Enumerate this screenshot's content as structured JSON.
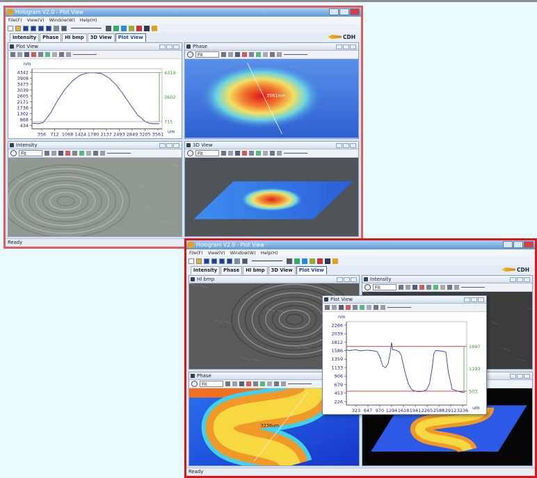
{
  "windows": [
    {
      "title": "Hologram V2.0 - Plot View",
      "menu": [
        "File(F)",
        "View(V)",
        "Window(W)",
        "Help(H)"
      ],
      "tabs": [
        "Intensity",
        "Phase",
        "HI bmp",
        "3D View",
        "Plot View"
      ],
      "active_tab": 4,
      "logo": "CDH",
      "status": "Ready",
      "panels": [
        {
          "title": "Plot View"
        },
        {
          "title": "Phase",
          "zoom": "Fit",
          "annotation": "3561nm"
        },
        {
          "title": "Intensity",
          "zoom": "Fit"
        },
        {
          "title": "3D View",
          "zoom": "Fit"
        }
      ],
      "plot": {
        "y_unit": "nm",
        "x_unit": "um",
        "yticks": [
          434,
          868,
          1302,
          1736,
          2171,
          2605,
          3039,
          3473,
          3908,
          4342
        ],
        "xticks": [
          356,
          712,
          1068,
          1424,
          1780,
          2137,
          2493,
          2849,
          3205,
          3561
        ],
        "markers": [
          4319,
          3602,
          715
        ],
        "profile": {
          "x": [
            100,
            250,
            400,
            600,
            800,
            1000,
            1200,
            1400,
            1600,
            1780,
            2000,
            2200,
            2400,
            2600,
            2800,
            3000,
            3200,
            3300,
            3400,
            3600
          ],
          "y": [
            600,
            560,
            650,
            1350,
            2300,
            3100,
            3700,
            4100,
            4290,
            4319,
            4250,
            3950,
            3450,
            2750,
            1950,
            1200,
            740,
            620,
            560,
            560
          ]
        }
      }
    },
    {
      "title": "Hologram V2.0 - Plot View",
      "menu": [
        "File(F)",
        "View(V)",
        "Window(W)",
        "Help(H)"
      ],
      "tabs": [
        "Intensity",
        "Phase",
        "HI bmp",
        "3D View",
        "Plot View"
      ],
      "active_tab": 4,
      "logo": "CDH",
      "status": "Ready",
      "panels": [
        {
          "title": "HI bmp"
        },
        {
          "title": "Intensity",
          "zoom": "Fit"
        },
        {
          "title": "Phase",
          "zoom": "Fit",
          "annotation": "3236um"
        }
      ],
      "popup": {
        "title": "Plot View",
        "plot": {
          "y_unit": "nm",
          "x_unit": "um",
          "yticks": [
            226,
            453,
            679,
            906,
            1133,
            1359,
            1586,
            1812,
            2039,
            2266
          ],
          "xticks": [
            323,
            647,
            970,
            1294,
            1618,
            1941,
            2265,
            2588,
            2912,
            3236
          ],
          "markers": [
            1697,
            1193,
            503
          ],
          "profile": {
            "x": [
              60,
              150,
              300,
              450,
              600,
              750,
              900,
              980,
              1050,
              1130,
              1200,
              1260,
              1294,
              1320,
              1400,
              1500,
              1560,
              1650,
              1750,
              1850,
              1950,
              2050,
              2150,
              2250,
              2330,
              2400,
              2450,
              2500,
              2600,
              2700,
              2780,
              2850,
              2950,
              3050,
              3150,
              3300
            ],
            "y": [
              1600,
              1590,
              1610,
              1580,
              1600,
              1590,
              1560,
              1400,
              1170,
              1130,
              1250,
              1550,
              1800,
              1610,
              1600,
              1560,
              1450,
              1050,
              700,
              540,
              500,
              490,
              500,
              540,
              700,
              1100,
              1500,
              1590,
              1580,
              1570,
              1540,
              1000,
              560,
              520,
              490,
              470
            ]
          }
        }
      }
    }
  ]
}
